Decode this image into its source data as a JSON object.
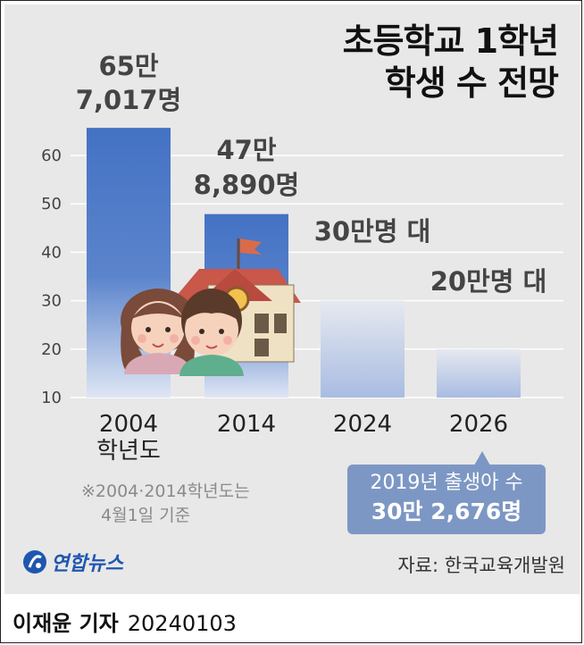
{
  "title_lines": [
    "초등학교 1학년",
    "학생 수 전망"
  ],
  "chart_data": {
    "type": "bar",
    "title": "초등학교 1학년 학생 수 전망",
    "categories": [
      "2004 학년도",
      "2014",
      "2024",
      "2026"
    ],
    "categories_display": [
      [
        "2004",
        "학년도"
      ],
      [
        "2014"
      ],
      [
        "2024"
      ],
      [
        "2026"
      ]
    ],
    "values": [
      65.7017,
      47.889,
      30,
      20
    ],
    "unit": "만명",
    "value_labels": [
      [
        "65만",
        "7,017명"
      ],
      [
        "47만",
        "8,890명"
      ],
      [
        "30만명 대"
      ],
      [
        "20만명 대"
      ]
    ],
    "bar_style": [
      "solid",
      "solid",
      "faded",
      "faded"
    ],
    "ylim": [
      10,
      70
    ],
    "yticks": [
      10,
      20,
      30,
      40,
      50,
      60
    ],
    "grid": true,
    "colors": {
      "bar": "#4472c4",
      "faded": "#aabbe2",
      "grid": "#ffffff"
    }
  },
  "note": [
    "※2004·2014학년도는",
    "4월1일 기준"
  ],
  "callout": {
    "line1": "2019년 출생아 수",
    "line2": "30만 2,676명"
  },
  "logo_text": "연합뉴스",
  "source": "자료: 한국교육개발원",
  "footer": {
    "reporter": "이재윤 기자",
    "date": "20240103"
  }
}
